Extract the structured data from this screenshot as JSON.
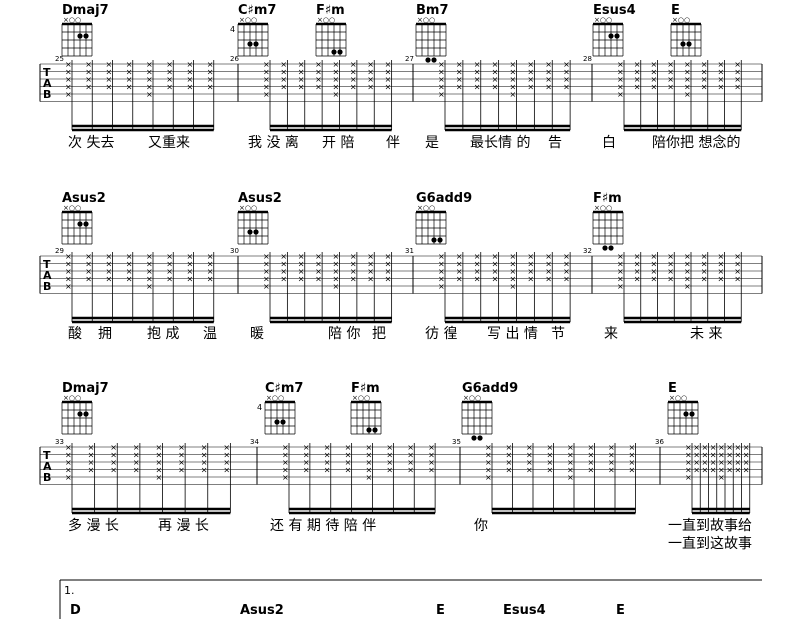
{
  "tab_letters": [
    "T",
    "A",
    "B"
  ],
  "systems": [
    {
      "measures": [
        25,
        26,
        27,
        28
      ],
      "chords": [
        {
          "name": "Dmaj7"
        },
        {
          "name": "C♯m7",
          "fret": 4
        },
        {
          "name": "F♯m"
        },
        {
          "name": "Bm7"
        },
        {
          "name": "Esus4"
        },
        {
          "name": "E"
        }
      ],
      "lyrics": [
        "次 失去",
        "又重来",
        "我 没 离",
        "开 陪",
        "伴",
        "是",
        "最长情 的",
        "告",
        "白",
        "陪你把 想念的"
      ]
    },
    {
      "measures": [
        29,
        30,
        31,
        32
      ],
      "chords": [
        {
          "name": "Asus2"
        },
        {
          "name": "Asus2"
        },
        {
          "name": "G6add9"
        },
        {
          "name": "F♯m"
        }
      ],
      "lyrics": [
        "酸",
        "拥",
        "抱 成",
        "温",
        "暖",
        "陪 你",
        "把",
        "彷 徨",
        "写 出 情",
        "节",
        "来",
        "未 来"
      ]
    },
    {
      "measures": [
        33,
        34,
        35,
        36
      ],
      "chords": [
        {
          "name": "Dmaj7"
        },
        {
          "name": "C♯m7",
          "fret": 4
        },
        {
          "name": "F♯m"
        },
        {
          "name": "G6add9"
        },
        {
          "name": "E"
        }
      ],
      "lyrics": [
        "多 漫 长",
        "再 漫 长",
        "还 有 期 待 陪 伴",
        "你",
        "一直到故事给",
        "一直到这故事"
      ]
    }
  ],
  "ending": {
    "label": "1.",
    "chords": [
      "D",
      "Asus2",
      "E",
      "Esus4",
      "E"
    ]
  }
}
